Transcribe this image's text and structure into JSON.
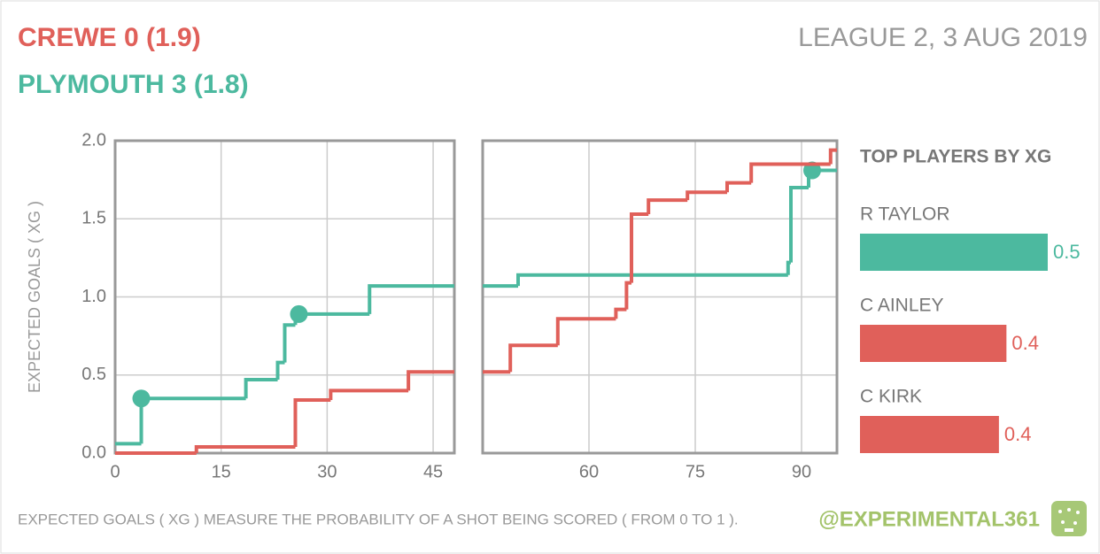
{
  "header": {
    "home": "CREWE 0 (1.9)",
    "away": "PLYMOUTH 3 (1.8)",
    "competition": "LEAGUE 2, 3 AUG 2019"
  },
  "footer": {
    "note": "EXPECTED GOALS ( XG ) MEASURE THE PROBABILITY OF A SHOT BEING SCORED ( FROM 0 TO 1 ).",
    "credit": "@EXPERIMENTAL361"
  },
  "chart_data": [
    {
      "type": "line",
      "step": "post",
      "ylabel": "EXPECTED GOALS ( XG )",
      "xlim": [
        0,
        48
      ],
      "xticks": [
        0,
        15,
        30,
        45
      ],
      "ylim": [
        0,
        2
      ],
      "yticks": [
        {
          "value": 0,
          "label": "0.0"
        },
        0.5,
        {
          "value": 1,
          "label": "1.0"
        },
        1.5,
        {
          "value": 2,
          "label": "2.0"
        }
      ],
      "grid": true,
      "series": [
        {
          "color": "#4cb99f",
          "x": [
            0,
            3.7,
            18.5,
            23,
            24,
            25.5,
            36
          ],
          "values": [
            0.06,
            0.35,
            0.47,
            0.58,
            0.82,
            0.89,
            1.07
          ],
          "goals": [
            {
              "x": 3.7,
              "value": 0.35
            },
            {
              "x": 26,
              "value": 0.89
            }
          ]
        },
        {
          "color": "#e0605a",
          "x": [
            0,
            11.5,
            25.5,
            30.5,
            41.5
          ],
          "values": [
            0,
            0.04,
            0.34,
            0.4,
            0.52
          ],
          "goals": []
        }
      ]
    },
    {
      "type": "line",
      "step": "post",
      "sharey": true,
      "xlim": [
        45,
        95
      ],
      "xticks": [
        60,
        75,
        90
      ],
      "ylim": [
        0,
        2
      ],
      "grid": true,
      "series": [
        {
          "color": "#4cb99f",
          "x": [
            45,
            50,
            88.1,
            88.5,
            91
          ],
          "values": [
            1.07,
            1.14,
            1.22,
            1.7,
            1.81
          ],
          "goals": [
            {
              "x": 91.5,
              "value": 1.81
            }
          ]
        },
        {
          "color": "#e0605a",
          "x": [
            45,
            48.9,
            55.6,
            63.8,
            65.3,
            66,
            68.4,
            73.9,
            79.5,
            82.9,
            94.1
          ],
          "values": [
            0.52,
            0.69,
            0.86,
            0.92,
            1.09,
            1.53,
            1.62,
            1.67,
            1.73,
            1.85,
            1.94
          ],
          "goals": []
        }
      ]
    },
    {
      "type": "barh",
      "title": "TOP PLAYERS BY XG",
      "categories": [
        "R TAYLOR",
        "C AINLEY",
        "C KIRK"
      ],
      "values": [
        0.5,
        0.39,
        0.37
      ],
      "value_labels": [
        "0.5",
        "0.4",
        "0.4"
      ],
      "colors": [
        "#4cb99f",
        "#e0605a",
        "#e0605a"
      ],
      "xlim": [
        0,
        0.5
      ]
    }
  ]
}
